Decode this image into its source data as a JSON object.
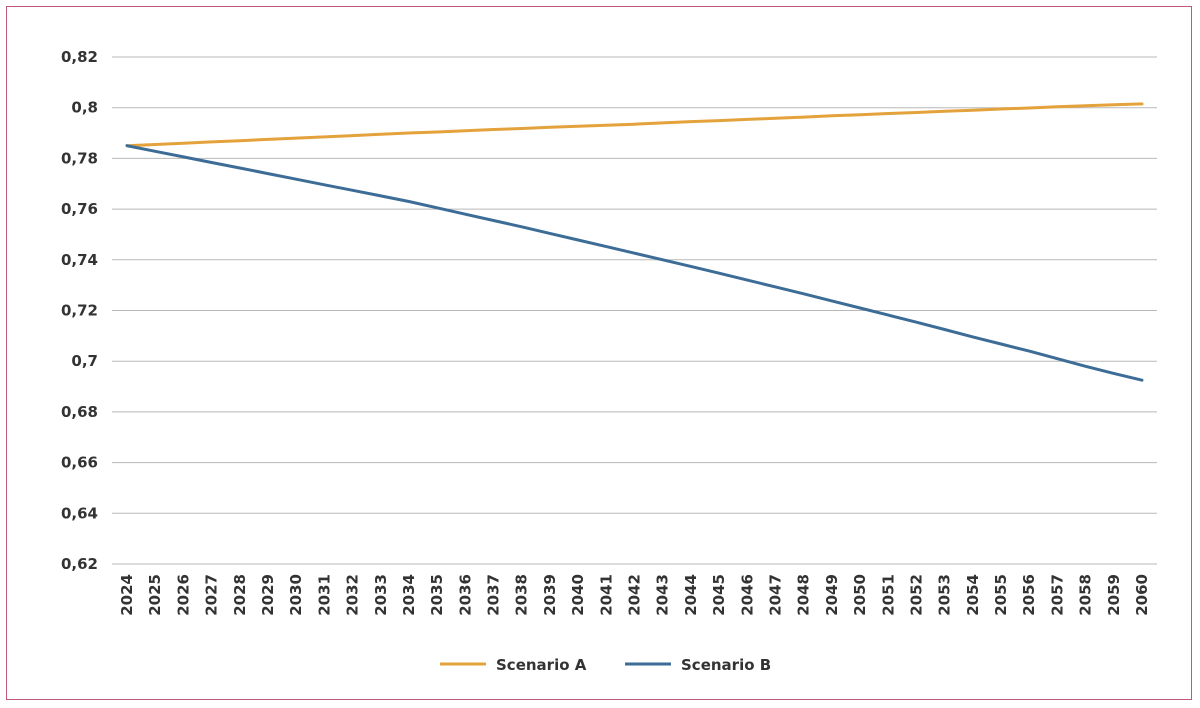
{
  "chart_data": {
    "type": "line",
    "title": "",
    "xlabel": "",
    "ylabel": "",
    "ylim": [
      0.62,
      0.82
    ],
    "yticks": [
      "0,62",
      "0,64",
      "0,66",
      "0,68",
      "0,7",
      "0,72",
      "0,74",
      "0,76",
      "0,78",
      "0,8",
      "0,82"
    ],
    "ytick_values": [
      0.62,
      0.64,
      0.66,
      0.68,
      0.7,
      0.72,
      0.74,
      0.76,
      0.78,
      0.8,
      0.82
    ],
    "grid": true,
    "legend_position": "bottom-center",
    "categories": [
      "2024",
      "2025",
      "2026",
      "2027",
      "2028",
      "2029",
      "2030",
      "2031",
      "2032",
      "2033",
      "2034",
      "2035",
      "2036",
      "2037",
      "2038",
      "2039",
      "2040",
      "2041",
      "2042",
      "2043",
      "2044",
      "2045",
      "2046",
      "2047",
      "2048",
      "2049",
      "2050",
      "2051",
      "2052",
      "2053",
      "2054",
      "2055",
      "2056",
      "2057",
      "2058",
      "2059",
      "2060"
    ],
    "series": [
      {
        "name": "Scenario A",
        "color": "#e3a23b",
        "values": [
          0.785,
          0.7855,
          0.786,
          0.7865,
          0.787,
          0.7875,
          0.788,
          0.7885,
          0.789,
          0.7895,
          0.79,
          0.7904,
          0.7909,
          0.7914,
          0.7918,
          0.7923,
          0.7927,
          0.7931,
          0.7935,
          0.794,
          0.7945,
          0.7949,
          0.7954,
          0.7958,
          0.7963,
          0.7968,
          0.7972,
          0.7977,
          0.7981,
          0.7986,
          0.799,
          0.7995,
          0.7999,
          0.8004,
          0.8008,
          0.8012,
          0.8015
        ]
      },
      {
        "name": "Scenario B",
        "color": "#3d6d97",
        "values": [
          0.785,
          0.7828,
          0.7806,
          0.7784,
          0.7762,
          0.774,
          0.7718,
          0.7696,
          0.7674,
          0.7652,
          0.763,
          0.7605,
          0.758,
          0.7555,
          0.753,
          0.7504,
          0.7478,
          0.7452,
          0.7426,
          0.74,
          0.7374,
          0.7347,
          0.732,
          0.7293,
          0.7266,
          0.7238,
          0.721,
          0.7182,
          0.7154,
          0.7125,
          0.7096,
          0.7068,
          0.704,
          0.701,
          0.698,
          0.6952,
          0.6925
        ]
      }
    ]
  }
}
